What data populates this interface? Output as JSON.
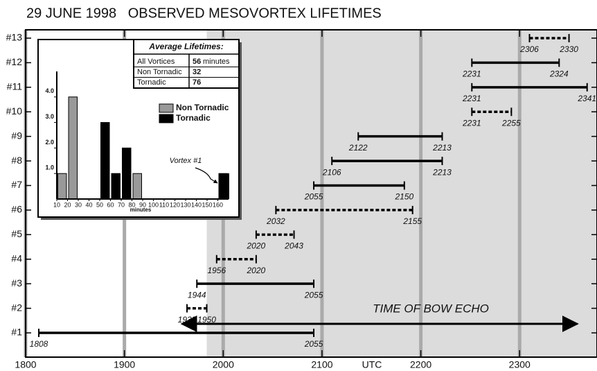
{
  "chart_data": [
    {
      "type": "timeline",
      "title": "29 JUNE 1998   OBSERVED MESOVORTEX LIFETIMES",
      "categories": [
        "#1",
        "#2",
        "#3",
        "#4",
        "#5",
        "#6",
        "#7",
        "#8",
        "#9",
        "#10",
        "#11",
        "#12",
        "#13"
      ],
      "start": [
        1808,
        1938,
        1944,
        1956,
        2020,
        2032,
        2055,
        2106,
        2122,
        2231,
        2231,
        2231,
        2306
      ],
      "end": [
        2055,
        1950,
        2055,
        2020,
        2043,
        2155,
        2150,
        2213,
        2213,
        2255,
        2341,
        2324,
        2330
      ],
      "tornadic": [
        true,
        false,
        true,
        false,
        false,
        false,
        true,
        true,
        true,
        false,
        true,
        true,
        false
      ],
      "xlabel": "UTC",
      "xlim": [
        1800,
        2347
      ],
      "xticks": [
        1800,
        1900,
        2000,
        2100,
        2200,
        2300
      ],
      "shaded_from": 1950,
      "annotation": "TIME OF BOW ECHO",
      "bow_echo": [
        1935,
        2335
      ]
    },
    {
      "type": "histogram",
      "xlabel": "minutes",
      "series": [
        {
          "name": "Non Tornadic",
          "color": "#999999",
          "x": [
            10,
            20,
            80
          ],
          "values": [
            1,
            4,
            1
          ]
        },
        {
          "name": "Tornadic",
          "color": "#000000",
          "x": [
            50,
            60,
            70,
            160
          ],
          "values": [
            3,
            1,
            2,
            1
          ]
        }
      ],
      "xlim": [
        10,
        170
      ],
      "xticks": [
        10,
        20,
        30,
        40,
        50,
        60,
        70,
        80,
        90,
        100,
        110,
        120,
        130,
        140,
        150,
        160
      ],
      "ylim": [
        0,
        5
      ],
      "yticks": [
        {
          "value": 1,
          "label": "1.0"
        },
        {
          "value": 2,
          "label": "2.0"
        },
        {
          "value": 3,
          "label": "3.0"
        },
        {
          "value": 4,
          "label": "4.0"
        }
      ],
      "annotation": "Vortex #1",
      "table": {
        "title": "Average Lifetimes:",
        "rows": [
          [
            "All Vortices",
            56,
            "minutes"
          ],
          [
            "Non Tornadic",
            32
          ],
          [
            "Tornadic",
            76
          ]
        ]
      }
    }
  ]
}
